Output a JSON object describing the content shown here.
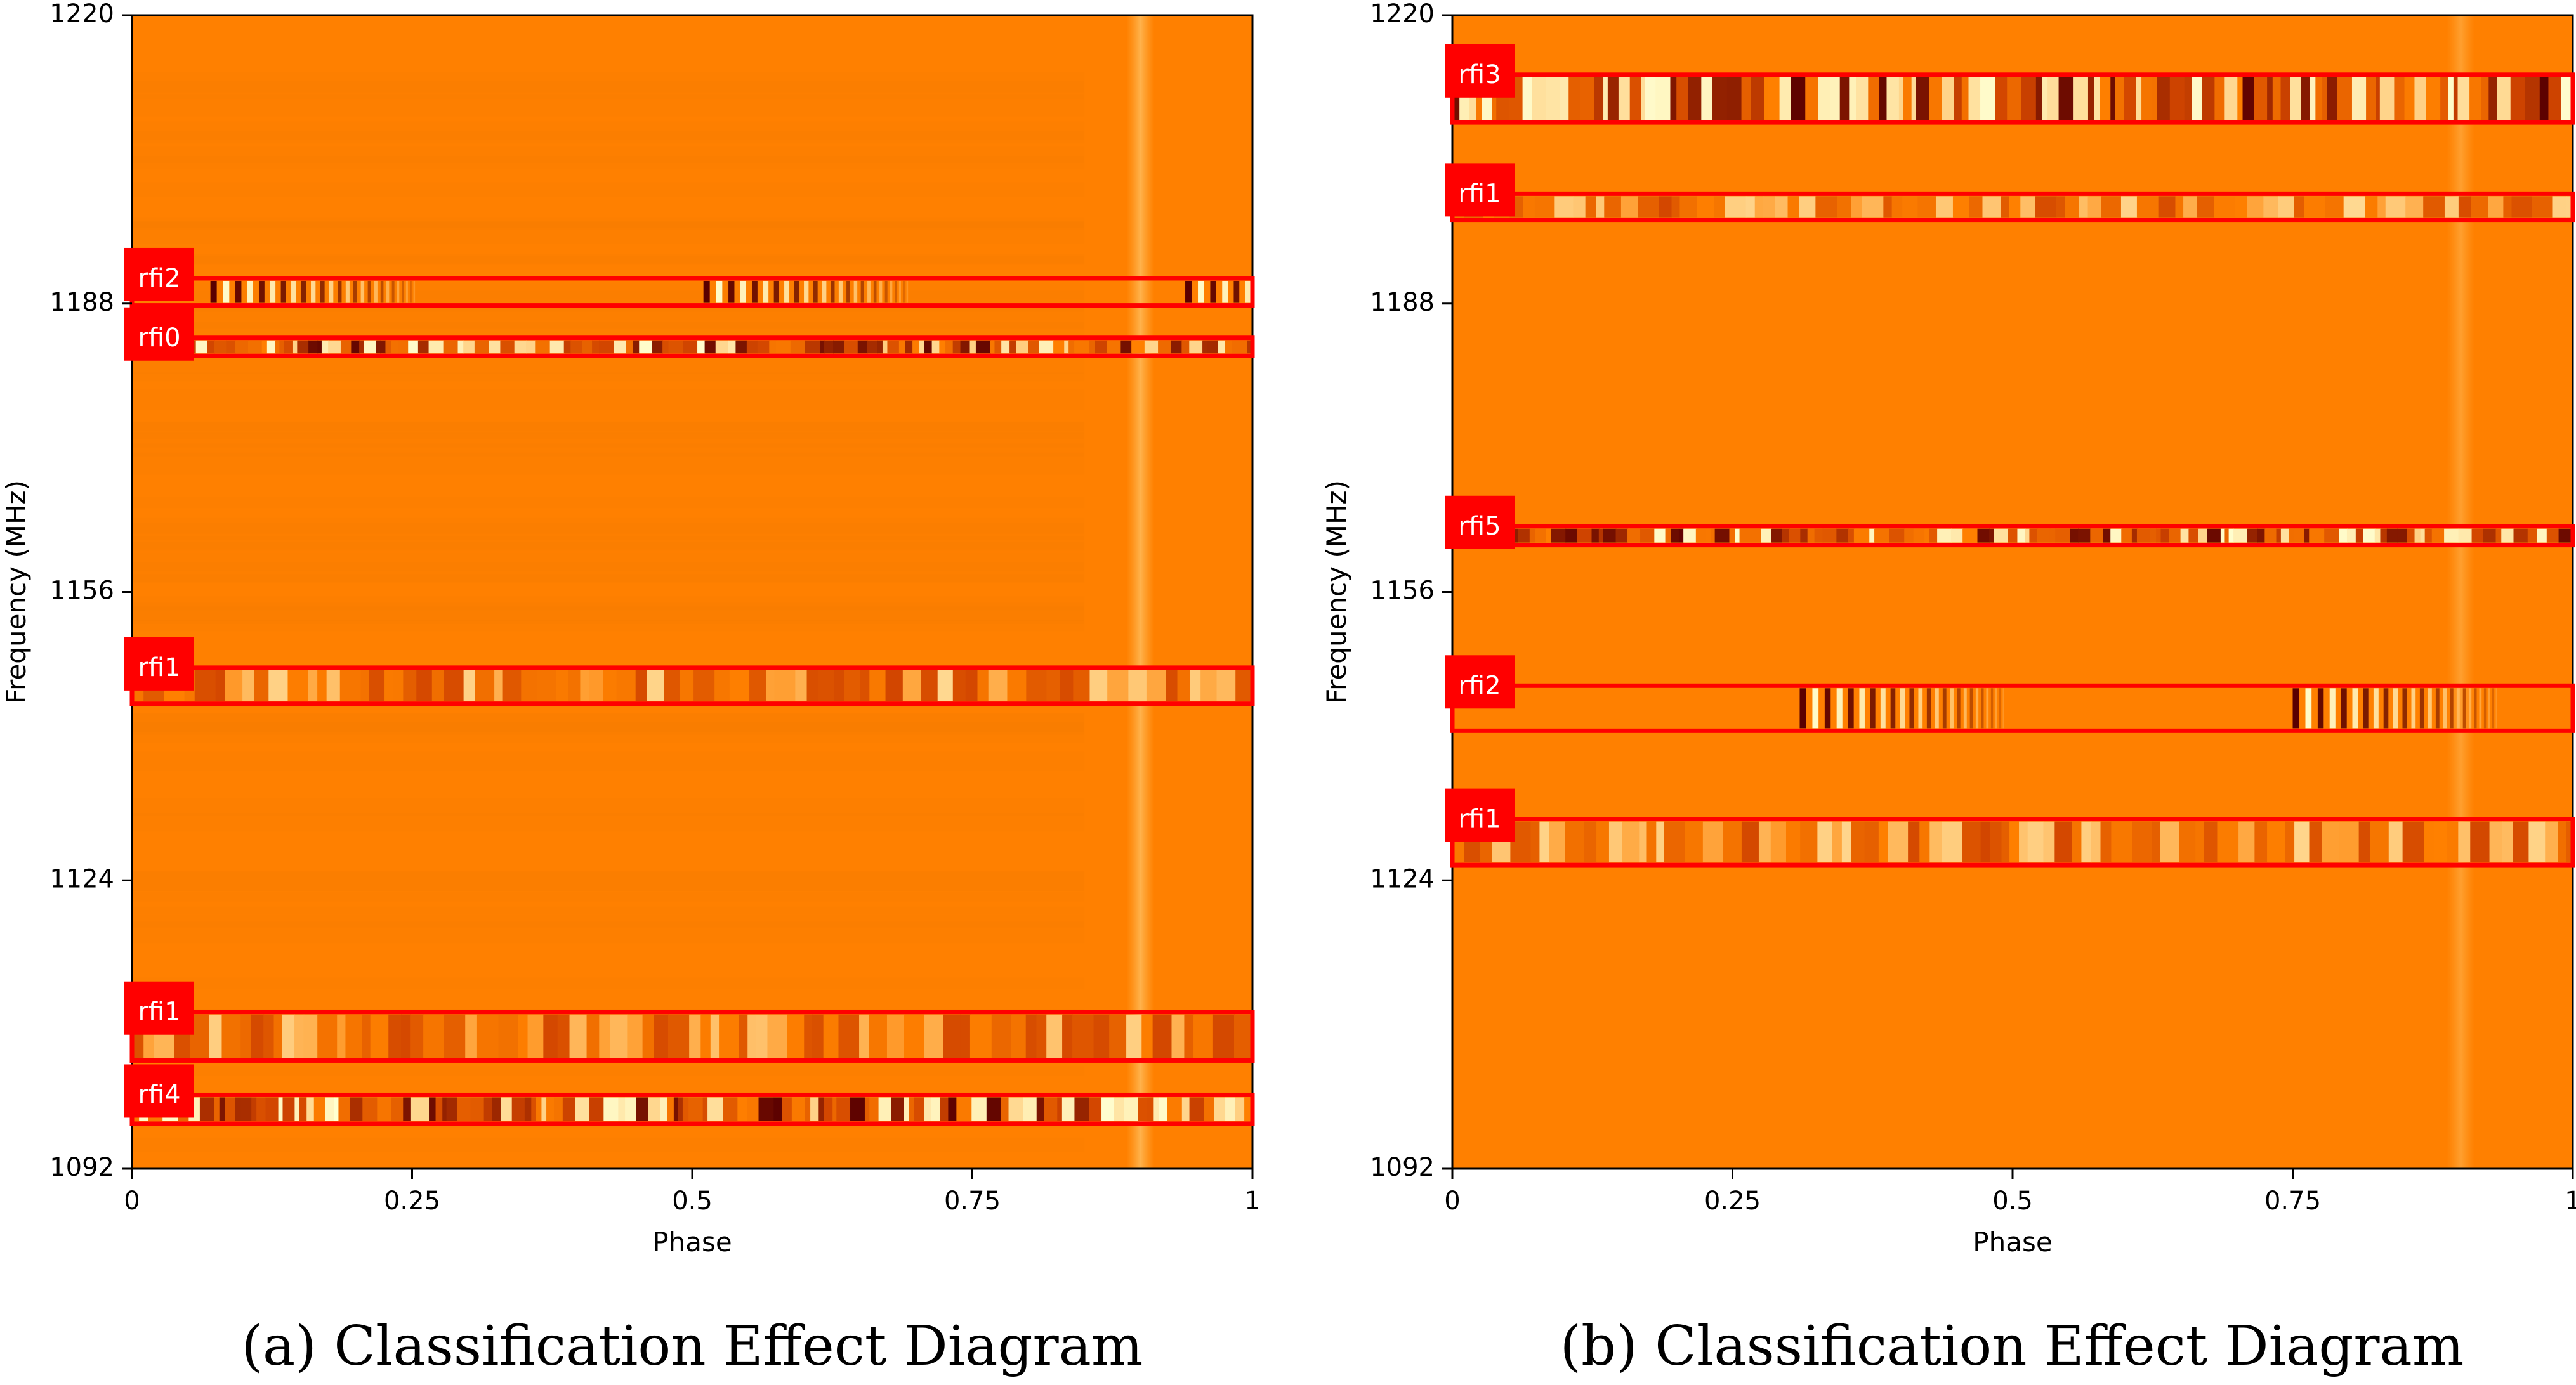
{
  "chart_data": [
    {
      "type": "heatmap",
      "caption": "(a) Classification Effect Diagram",
      "xlabel": "Phase",
      "ylabel": "Frequency (MHz)",
      "xlim": [
        0,
        1
      ],
      "ylim": [
        1092,
        1220
      ],
      "xticks": [
        {
          "value": 0,
          "label": "0"
        },
        {
          "value": 0.25,
          "label": "0.25"
        },
        {
          "value": 0.5,
          "label": "0.5"
        },
        {
          "value": 0.75,
          "label": "0.75"
        },
        {
          "value": 1,
          "label": "1"
        }
      ],
      "yticks": [
        {
          "value": 1092,
          "label": "1092"
        },
        {
          "value": 1124,
          "label": "1124"
        },
        {
          "value": 1156,
          "label": "1156"
        },
        {
          "value": 1188,
          "label": "1188"
        },
        {
          "value": 1220,
          "label": "1220"
        }
      ],
      "boxes": [
        {
          "label": "rfi2",
          "freq_low": 1187.8,
          "freq_high": 1190.8
        },
        {
          "label": "rfi0",
          "freq_low": 1182.2,
          "freq_high": 1184.2
        },
        {
          "label": "rfi1",
          "freq_low": 1143.6,
          "freq_high": 1147.6
        },
        {
          "label": "rfi1",
          "freq_low": 1104.0,
          "freq_high": 1109.4
        },
        {
          "label": "rfi4",
          "freq_low": 1097.0,
          "freq_high": 1100.2
        }
      ]
    },
    {
      "type": "heatmap",
      "caption": "(b) Classification Effect Diagram",
      "xlabel": "Phase",
      "ylabel": "Frequency (MHz)",
      "xlim": [
        0,
        1
      ],
      "ylim": [
        1092,
        1220
      ],
      "xticks": [
        {
          "value": 0,
          "label": "0"
        },
        {
          "value": 0.25,
          "label": "0.25"
        },
        {
          "value": 0.5,
          "label": "0.5"
        },
        {
          "value": 0.75,
          "label": "0.75"
        },
        {
          "value": 1,
          "label": "1"
        }
      ],
      "yticks": [
        {
          "value": 1092,
          "label": "1092"
        },
        {
          "value": 1124,
          "label": "1124"
        },
        {
          "value": 1156,
          "label": "1156"
        },
        {
          "value": 1188,
          "label": "1188"
        },
        {
          "value": 1220,
          "label": "1220"
        }
      ],
      "boxes": [
        {
          "label": "rfi3",
          "freq_low": 1208.1,
          "freq_high": 1213.4
        },
        {
          "label": "rfi1",
          "freq_low": 1197.3,
          "freq_high": 1200.2
        },
        {
          "label": "rfi5",
          "freq_low": 1161.2,
          "freq_high": 1163.3
        },
        {
          "label": "rfi2",
          "freq_low": 1140.6,
          "freq_high": 1145.6
        },
        {
          "label": "rfi1",
          "freq_low": 1125.7,
          "freq_high": 1130.8
        }
      ]
    }
  ],
  "colors": {
    "background": "#ff8000",
    "box": "#ff0000",
    "label_bg": "#ff0000",
    "label_text": "#ffffff",
    "band_dark": "#5a0000",
    "band_light": "#ffffd0"
  }
}
